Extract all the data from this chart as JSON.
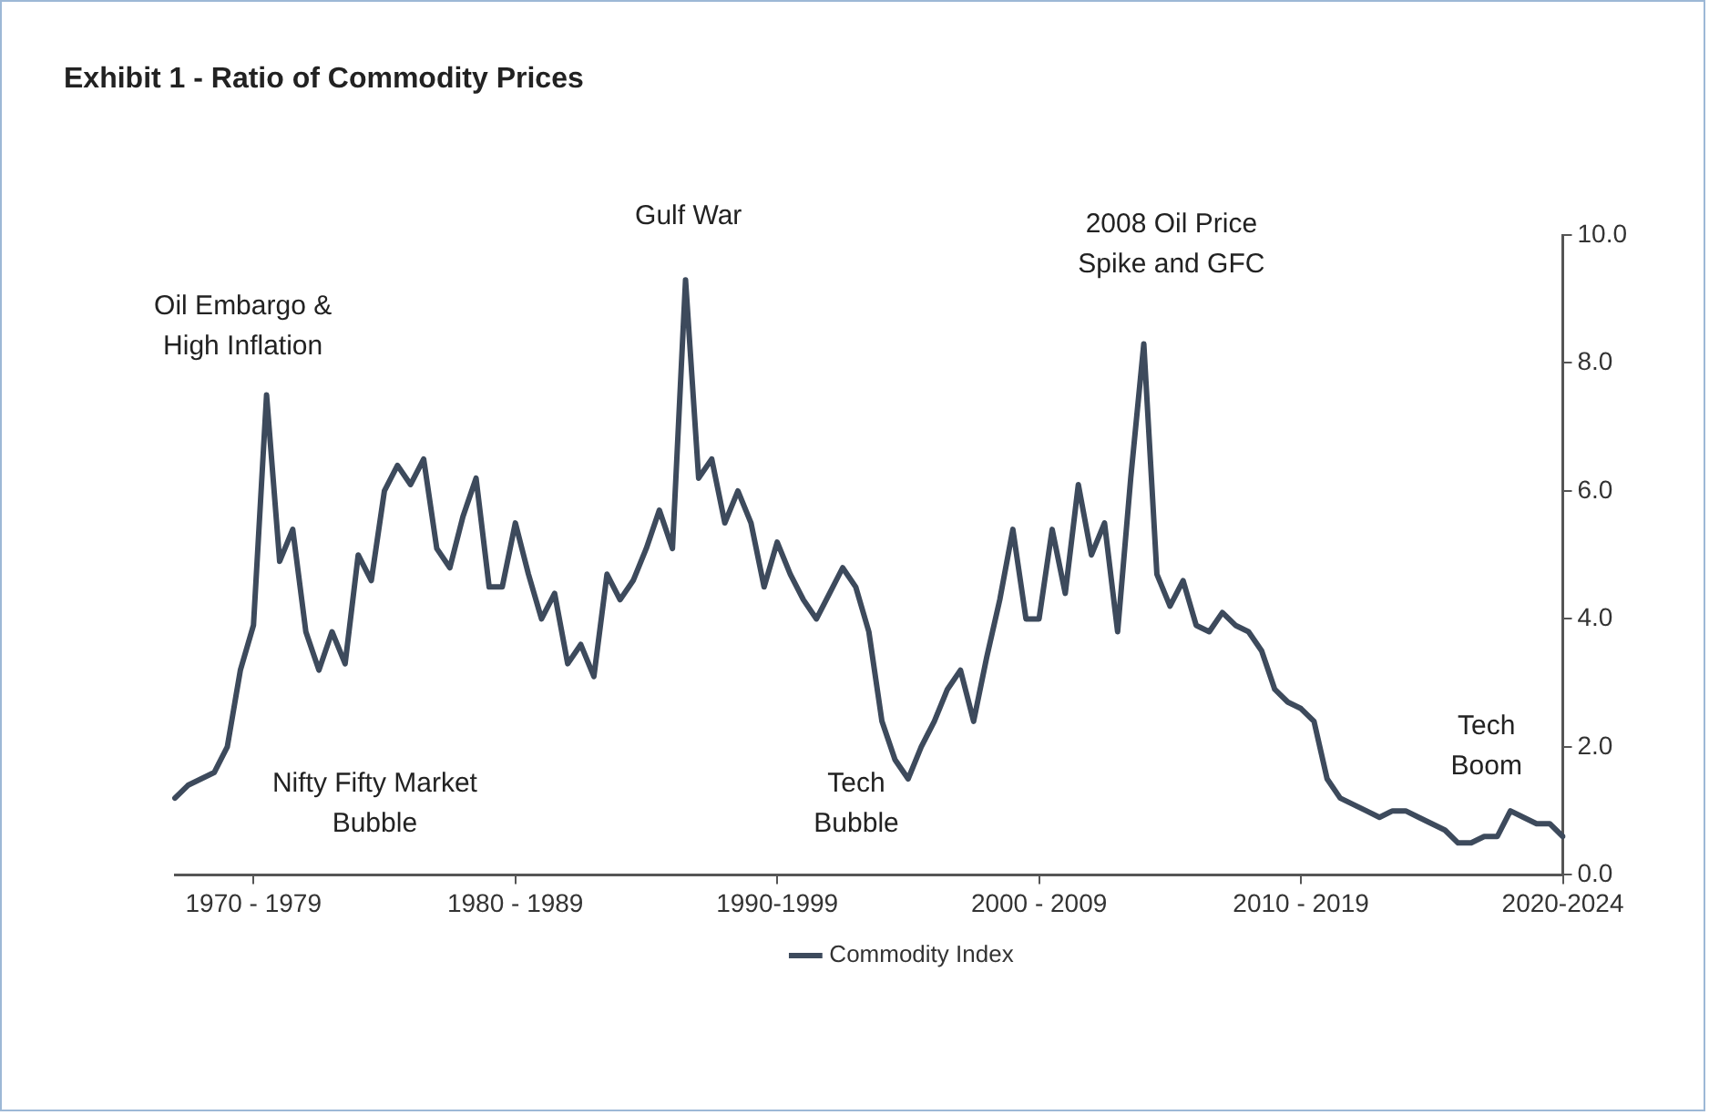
{
  "chart_data": {
    "type": "line",
    "title": "Exhibit 1 - Ratio of Commodity Prices",
    "categories": [
      null,
      null,
      null,
      null,
      null,
      null,
      "1970 - 1979",
      null,
      null,
      null,
      null,
      null,
      null,
      null,
      null,
      null,
      null,
      null,
      null,
      null,
      null,
      null,
      null,
      null,
      null,
      null,
      "1980 - 1989",
      null,
      null,
      null,
      null,
      null,
      null,
      null,
      null,
      null,
      null,
      null,
      null,
      null,
      null,
      null,
      null,
      null,
      null,
      null,
      "1990-1999",
      null,
      null,
      null,
      null,
      null,
      null,
      null,
      null,
      null,
      null,
      null,
      null,
      null,
      null,
      null,
      null,
      null,
      null,
      null,
      "2000 - 2009",
      null,
      null,
      null,
      null,
      null,
      null,
      null,
      null,
      null,
      null,
      null,
      null,
      null,
      null,
      null,
      null,
      null,
      null,
      null,
      "2010 - 2019",
      null,
      null,
      null,
      null,
      null,
      null,
      null,
      null,
      null,
      null,
      null,
      null,
      null,
      null,
      null,
      null,
      null,
      null,
      null,
      "2020-2024"
    ],
    "series": [
      {
        "name": "Commodity Index",
        "color": "#3d4a5c",
        "values": [
          1.2,
          1.4,
          1.5,
          1.6,
          2.0,
          3.2,
          3.9,
          7.5,
          4.9,
          5.4,
          3.8,
          3.2,
          3.8,
          3.3,
          5.0,
          4.6,
          6.0,
          6.4,
          6.1,
          6.5,
          5.1,
          4.8,
          5.6,
          6.2,
          4.5,
          4.5,
          5.5,
          4.7,
          4.0,
          4.4,
          3.3,
          3.6,
          3.1,
          4.7,
          4.3,
          4.6,
          5.1,
          5.7,
          5.1,
          9.3,
          6.2,
          6.5,
          5.5,
          6.0,
          5.5,
          4.5,
          5.2,
          4.7,
          4.3,
          4.0,
          4.4,
          4.8,
          4.5,
          3.8,
          2.4,
          1.8,
          1.5,
          2.0,
          2.4,
          2.9,
          3.2,
          2.4,
          3.4,
          4.3,
          5.4,
          4.0,
          4.0,
          5.4,
          4.4,
          6.1,
          5.0,
          5.5,
          3.8,
          6.2,
          8.3,
          4.7,
          4.2,
          4.6,
          3.9,
          3.8,
          4.1,
          3.9,
          3.8,
          3.5,
          2.9,
          2.7,
          2.6,
          2.4,
          1.5,
          1.2,
          1.1,
          1.0,
          0.9,
          1.0,
          1.0,
          0.9,
          0.8,
          0.7,
          0.5,
          0.5,
          0.6,
          0.6,
          1.0,
          0.9,
          0.8,
          0.8,
          0.6
        ]
      }
    ],
    "ylim": [
      0,
      10
    ],
    "yticks": [
      {
        "value": 0,
        "label": "0.0"
      },
      {
        "value": 2,
        "label": "2.0"
      },
      {
        "value": 4,
        "label": "4.0"
      },
      {
        "value": 6,
        "label": "6.0"
      },
      {
        "value": 8,
        "label": "8.0"
      },
      {
        "value": 10,
        "label": "10.0"
      }
    ],
    "grid": false,
    "legend": "bottom",
    "marker": "none",
    "line_style": "solid",
    "annotations": [
      "Oil Embargo &\nHigh Inflation",
      "Gulf War",
      "2008 Oil Price\nSpike and GFC",
      "Nifty Fifty Market\nBubble",
      "Tech\nBubble",
      "Tech\nBoom"
    ]
  }
}
